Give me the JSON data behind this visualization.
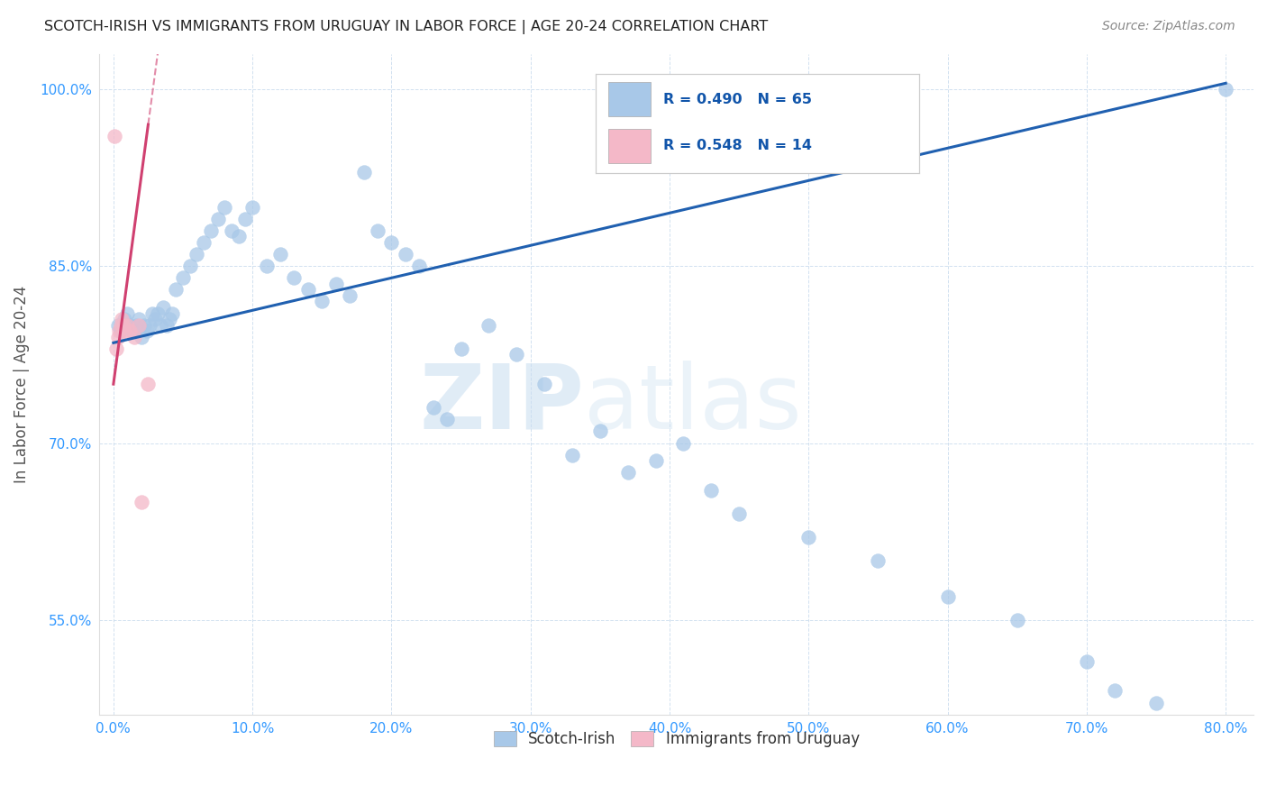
{
  "title": "SCOTCH-IRISH VS IMMIGRANTS FROM URUGUAY IN LABOR FORCE | AGE 20-24 CORRELATION CHART",
  "source": "Source: ZipAtlas.com",
  "ylabel": "In Labor Force | Age 20-24",
  "xlim": [
    -1.0,
    82.0
  ],
  "ylim": [
    47.0,
    103.0
  ],
  "xticks": [
    0.0,
    10.0,
    20.0,
    30.0,
    40.0,
    50.0,
    60.0,
    70.0,
    80.0
  ],
  "yticks": [
    55.0,
    70.0,
    85.0,
    100.0
  ],
  "x_tick_labels": [
    "0.0%",
    "10.0%",
    "20.0%",
    "30.0%",
    "40.0%",
    "50.0%",
    "60.0%",
    "70.0%",
    "80.0%"
  ],
  "y_tick_labels": [
    "55.0%",
    "70.0%",
    "85.0%",
    "100.0%"
  ],
  "legend_label1": "Scotch-Irish",
  "legend_label2": "Immigrants from Uruguay",
  "R1": 0.49,
  "N1": 65,
  "R2": 0.548,
  "N2": 14,
  "color_blue": "#a8c8e8",
  "color_pink": "#f4b8c8",
  "color_blue_line": "#2060b0",
  "color_pink_line": "#d04070",
  "scotch_irish_x": [
    0.3,
    0.5,
    0.8,
    1.0,
    1.2,
    1.4,
    1.6,
    1.8,
    2.0,
    2.2,
    2.4,
    2.6,
    2.8,
    3.0,
    3.2,
    3.4,
    3.6,
    3.8,
    4.0,
    4.2,
    4.5,
    5.0,
    5.5,
    6.0,
    6.5,
    7.0,
    7.5,
    8.0,
    8.5,
    9.0,
    9.5,
    10.0,
    11.0,
    12.0,
    13.0,
    14.0,
    15.0,
    16.0,
    17.0,
    18.0,
    19.0,
    20.0,
    21.0,
    22.0,
    23.0,
    24.0,
    25.0,
    27.0,
    29.0,
    31.0,
    33.0,
    35.0,
    37.0,
    39.0,
    41.0,
    43.0,
    45.0,
    50.0,
    55.0,
    60.0,
    65.0,
    70.0,
    72.0,
    75.0,
    80.0
  ],
  "scotch_irish_y": [
    80.0,
    79.5,
    80.5,
    81.0,
    80.0,
    79.5,
    80.0,
    80.5,
    79.0,
    80.0,
    79.5,
    80.0,
    81.0,
    80.5,
    81.0,
    80.0,
    81.5,
    80.0,
    80.5,
    81.0,
    83.0,
    84.0,
    85.0,
    86.0,
    87.0,
    88.0,
    89.0,
    90.0,
    88.0,
    87.5,
    89.0,
    90.0,
    85.0,
    86.0,
    84.0,
    83.0,
    82.0,
    83.5,
    82.5,
    93.0,
    88.0,
    87.0,
    86.0,
    85.0,
    73.0,
    72.0,
    78.0,
    80.0,
    77.5,
    75.0,
    69.0,
    71.0,
    67.5,
    68.5,
    70.0,
    66.0,
    64.0,
    62.0,
    60.0,
    57.0,
    55.0,
    51.5,
    49.0,
    48.0,
    100.0
  ],
  "uruguay_x": [
    0.1,
    0.2,
    0.3,
    0.4,
    0.5,
    0.6,
    0.7,
    0.8,
    1.0,
    1.2,
    1.5,
    1.8,
    2.0,
    2.5
  ],
  "uruguay_y": [
    96.0,
    78.0,
    79.0,
    79.5,
    80.0,
    80.5,
    80.0,
    79.5,
    80.0,
    79.5,
    79.0,
    80.0,
    65.0,
    75.0
  ],
  "blue_line_x0": 0.0,
  "blue_line_y0": 78.5,
  "blue_line_x1": 80.0,
  "blue_line_y1": 100.5,
  "pink_line_x0": 0.0,
  "pink_line_y0": 75.0,
  "pink_line_x1": 2.5,
  "pink_line_y1": 97.0
}
